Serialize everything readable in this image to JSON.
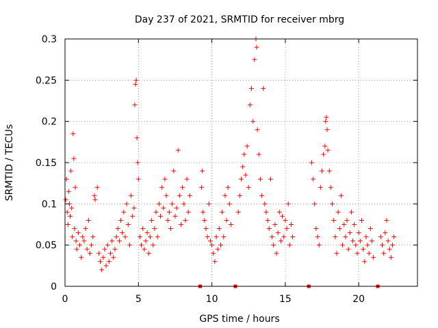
{
  "chart_data": {
    "type": "scatter",
    "title": "Day 237 of 2021, SRMTID for receiver mbrg",
    "xlabel": "GPS time / hours",
    "ylabel": "SRMTID / TECUs",
    "xlim": [
      0,
      24
    ],
    "ylim": [
      0,
      0.3
    ],
    "x_ticks": [
      0,
      5,
      10,
      15,
      20
    ],
    "y_ticks": [
      0,
      0.05,
      0.1,
      0.15,
      0.2,
      0.25,
      0.3
    ],
    "x_tick_labels": [
      "0",
      "5",
      "10",
      "15",
      "20"
    ],
    "y_tick_labels": [
      "0",
      "0.05",
      "0.1",
      "0.15",
      "0.2",
      "0.25",
      "0.3"
    ],
    "grid": true,
    "marker": "+",
    "color": "#ff0000",
    "series": [
      {
        "name": "SRMTID",
        "description": "Dense scatter of ~5-minute SRMTID estimates across all satellites; approximately 0.02-0.15 TECU baseline with enhancements near 4.8 h (~0.25), 12.5-13.2 h (~0.3) and 17.5-18 h (~0.2). Data gaps near 9.2, 11.5, 16.6 and 21.2 h.",
        "points": [
          [
            0.05,
            0.105
          ],
          [
            0.1,
            0.13
          ],
          [
            0.15,
            0.09
          ],
          [
            0.2,
            0.075
          ],
          [
            0.25,
            0.115
          ],
          [
            0.3,
            0.1
          ],
          [
            0.35,
            0.085
          ],
          [
            0.4,
            0.14
          ],
          [
            0.45,
            0.095
          ],
          [
            0.5,
            0.06
          ],
          [
            0.55,
            0.185
          ],
          [
            0.6,
            0.155
          ],
          [
            0.65,
            0.07
          ],
          [
            0.7,
            0.12
          ],
          [
            0.75,
            0.055
          ],
          [
            0.8,
            0.045
          ],
          [
            0.9,
            0.065
          ],
          [
            1.0,
            0.05
          ],
          [
            1.1,
            0.035
          ],
          [
            1.2,
            0.06
          ],
          [
            1.3,
            0.055
          ],
          [
            1.4,
            0.07
          ],
          [
            1.5,
            0.045
          ],
          [
            1.6,
            0.08
          ],
          [
            1.7,
            0.04
          ],
          [
            1.8,
            0.05
          ],
          [
            1.9,
            0.06
          ],
          [
            2.0,
            0.11
          ],
          [
            2.05,
            0.105
          ],
          [
            2.2,
            0.12
          ],
          [
            2.3,
            0.04
          ],
          [
            2.4,
            0.03
          ],
          [
            2.5,
            0.02
          ],
          [
            2.6,
            0.035
          ],
          [
            2.7,
            0.045
          ],
          [
            2.8,
            0.025
          ],
          [
            2.9,
            0.05
          ],
          [
            3.0,
            0.03
          ],
          [
            3.1,
            0.04
          ],
          [
            3.2,
            0.055
          ],
          [
            3.3,
            0.035
          ],
          [
            3.4,
            0.045
          ],
          [
            3.5,
            0.06
          ],
          [
            3.6,
            0.07
          ],
          [
            3.7,
            0.055
          ],
          [
            3.8,
            0.08
          ],
          [
            3.9,
            0.065
          ],
          [
            4.0,
            0.09
          ],
          [
            4.1,
            0.06
          ],
          [
            4.2,
            0.1
          ],
          [
            4.3,
            0.075
          ],
          [
            4.4,
            0.05
          ],
          [
            4.5,
            0.11
          ],
          [
            4.6,
            0.085
          ],
          [
            4.7,
            0.095
          ],
          [
            4.75,
            0.22
          ],
          [
            4.8,
            0.245
          ],
          [
            4.85,
            0.25
          ],
          [
            4.9,
            0.18
          ],
          [
            4.95,
            0.15
          ],
          [
            5.0,
            0.13
          ],
          [
            5.1,
            0.06
          ],
          [
            5.2,
            0.05
          ],
          [
            5.3,
            0.07
          ],
          [
            5.4,
            0.045
          ],
          [
            5.5,
            0.055
          ],
          [
            5.6,
            0.065
          ],
          [
            5.7,
            0.04
          ],
          [
            5.8,
            0.06
          ],
          [
            5.9,
            0.08
          ],
          [
            6.0,
            0.05
          ],
          [
            6.1,
            0.07
          ],
          [
            6.2,
            0.09
          ],
          [
            6.3,
            0.06
          ],
          [
            6.4,
            0.1
          ],
          [
            6.5,
            0.085
          ],
          [
            6.6,
            0.12
          ],
          [
            6.7,
            0.095
          ],
          [
            6.8,
            0.13
          ],
          [
            6.9,
            0.11
          ],
          [
            7.0,
            0.08
          ],
          [
            7.1,
            0.09
          ],
          [
            7.2,
            0.07
          ],
          [
            7.3,
            0.1
          ],
          [
            7.4,
            0.14
          ],
          [
            7.5,
            0.085
          ],
          [
            7.6,
            0.095
          ],
          [
            7.7,
            0.165
          ],
          [
            7.8,
            0.11
          ],
          [
            7.9,
            0.075
          ],
          [
            8.0,
            0.12
          ],
          [
            8.1,
            0.1
          ],
          [
            8.2,
            0.08
          ],
          [
            8.3,
            0.13
          ],
          [
            8.4,
            0.09
          ],
          [
            8.5,
            0.11
          ],
          [
            9.3,
            0.12
          ],
          [
            9.35,
            0.14
          ],
          [
            9.4,
            0.09
          ],
          [
            9.5,
            0.08
          ],
          [
            9.6,
            0.07
          ],
          [
            9.7,
            0.06
          ],
          [
            9.8,
            0.1
          ],
          [
            9.9,
            0.055
          ],
          [
            10.0,
            0.05
          ],
          [
            10.1,
            0.04
          ],
          [
            10.2,
            0.03
          ],
          [
            10.3,
            0.06
          ],
          [
            10.4,
            0.045
          ],
          [
            10.5,
            0.07
          ],
          [
            10.6,
            0.05
          ],
          [
            10.7,
            0.09
          ],
          [
            10.8,
            0.06
          ],
          [
            10.9,
            0.11
          ],
          [
            11.0,
            0.08
          ],
          [
            11.1,
            0.12
          ],
          [
            11.2,
            0.1
          ],
          [
            11.3,
            0.075
          ],
          [
            11.8,
            0.09
          ],
          [
            11.9,
            0.11
          ],
          [
            12.0,
            0.13
          ],
          [
            12.1,
            0.145
          ],
          [
            12.2,
            0.16
          ],
          [
            12.3,
            0.135
          ],
          [
            12.4,
            0.17
          ],
          [
            12.5,
            0.12
          ],
          [
            12.6,
            0.22
          ],
          [
            12.7,
            0.24
          ],
          [
            12.8,
            0.2
          ],
          [
            12.9,
            0.275
          ],
          [
            13.0,
            0.3
          ],
          [
            13.05,
            0.29
          ],
          [
            13.1,
            0.19
          ],
          [
            13.2,
            0.16
          ],
          [
            13.3,
            0.13
          ],
          [
            13.4,
            0.11
          ],
          [
            13.5,
            0.24
          ],
          [
            13.6,
            0.1
          ],
          [
            13.7,
            0.09
          ],
          [
            13.8,
            0.08
          ],
          [
            13.9,
            0.07
          ],
          [
            14.0,
            0.13
          ],
          [
            14.1,
            0.06
          ],
          [
            14.2,
            0.05
          ],
          [
            14.3,
            0.075
          ],
          [
            14.4,
            0.04
          ],
          [
            14.5,
            0.065
          ],
          [
            14.6,
            0.09
          ],
          [
            14.7,
            0.055
          ],
          [
            14.8,
            0.085
          ],
          [
            14.9,
            0.06
          ],
          [
            15.0,
            0.08
          ],
          [
            15.1,
            0.07
          ],
          [
            15.2,
            0.1
          ],
          [
            15.3,
            0.05
          ],
          [
            15.4,
            0.075
          ],
          [
            15.5,
            0.06
          ],
          [
            16.8,
            0.15
          ],
          [
            16.9,
            0.13
          ],
          [
            17.0,
            0.1
          ],
          [
            17.1,
            0.07
          ],
          [
            17.2,
            0.06
          ],
          [
            17.3,
            0.05
          ],
          [
            17.4,
            0.12
          ],
          [
            17.5,
            0.14
          ],
          [
            17.6,
            0.16
          ],
          [
            17.7,
            0.17
          ],
          [
            17.75,
            0.2
          ],
          [
            17.8,
            0.205
          ],
          [
            17.85,
            0.19
          ],
          [
            17.9,
            0.165
          ],
          [
            18.0,
            0.14
          ],
          [
            18.1,
            0.12
          ],
          [
            18.2,
            0.1
          ],
          [
            18.3,
            0.08
          ],
          [
            18.4,
            0.06
          ],
          [
            18.5,
            0.04
          ],
          [
            18.6,
            0.09
          ],
          [
            18.7,
            0.07
          ],
          [
            18.8,
            0.11
          ],
          [
            18.9,
            0.05
          ],
          [
            19.0,
            0.075
          ],
          [
            19.1,
            0.06
          ],
          [
            19.2,
            0.08
          ],
          [
            19.3,
            0.045
          ],
          [
            19.4,
            0.065
          ],
          [
            19.5,
            0.09
          ],
          [
            19.6,
            0.055
          ],
          [
            19.7,
            0.075
          ],
          [
            19.8,
            0.05
          ],
          [
            19.9,
            0.04
          ],
          [
            20.0,
            0.065
          ],
          [
            20.1,
            0.055
          ],
          [
            20.2,
            0.08
          ],
          [
            20.3,
            0.045
          ],
          [
            20.4,
            0.03
          ],
          [
            20.5,
            0.06
          ],
          [
            20.6,
            0.05
          ],
          [
            20.7,
            0.04
          ],
          [
            20.8,
            0.07
          ],
          [
            20.9,
            0.055
          ],
          [
            21.0,
            0.035
          ],
          [
            21.5,
            0.06
          ],
          [
            21.6,
            0.05
          ],
          [
            21.7,
            0.04
          ],
          [
            21.8,
            0.065
          ],
          [
            21.9,
            0.08
          ],
          [
            22.0,
            0.055
          ],
          [
            22.1,
            0.045
          ],
          [
            22.2,
            0.035
          ],
          [
            22.3,
            0.05
          ],
          [
            22.4,
            0.06
          ]
        ]
      },
      {
        "name": "data gaps",
        "marker": "square",
        "points": [
          [
            9.2,
            0
          ],
          [
            11.6,
            0
          ],
          [
            16.6,
            0
          ],
          [
            21.3,
            0
          ]
        ]
      }
    ]
  }
}
